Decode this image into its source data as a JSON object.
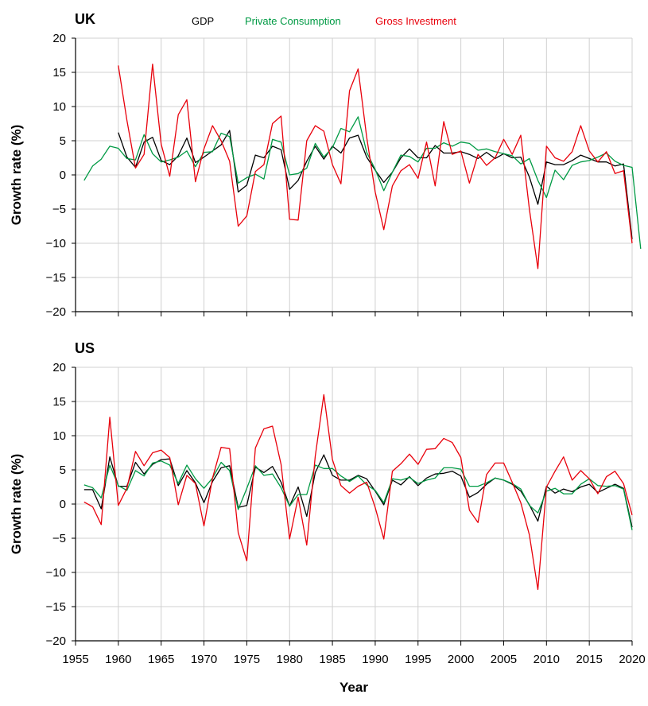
{
  "colors": {
    "gdp": "#000000",
    "consumption": "#009a44",
    "investment": "#e8000b",
    "grid": "#d0d0d0",
    "axis": "#000000"
  },
  "legend": [
    {
      "key": "gdp",
      "label": "GDP"
    },
    {
      "key": "consumption",
      "label": "Private Consumption"
    },
    {
      "key": "investment",
      "label": "Gross Investment"
    }
  ],
  "chart_data": [
    {
      "type": "line",
      "title": "UK",
      "xlabel": "Year",
      "ylabel": "Growth rate (%)",
      "xlim": [
        1955,
        2020
      ],
      "ylim": [
        -20,
        20
      ],
      "xticks": [
        "1955",
        "1960",
        "1965",
        "1970",
        "1975",
        "1980",
        "1985",
        "1990",
        "1995",
        "2000",
        "2005",
        "2010",
        "2015",
        "2020"
      ],
      "yticks": [
        "20",
        "15",
        "10",
        "5",
        "0",
        "−5",
        "−10",
        "−15",
        "−20"
      ],
      "grid": true,
      "series": [
        {
          "name": "GDP",
          "key": "gdp",
          "x0": 1960,
          "values": [
            6.2,
            2.6,
            1.1,
            4.8,
            5.5,
            2.1,
            1.5,
            2.8,
            5.4,
            1.8,
            2.6,
            3.5,
            4.4,
            6.5,
            -2.5,
            -1.5,
            2.9,
            2.5,
            4.2,
            3.7,
            -2.1,
            -0.8,
            2.0,
            4.2,
            2.3,
            4.2,
            3.2,
            5.4,
            5.8,
            2.6,
            0.7,
            -1.1,
            0.4,
            2.5,
            3.8,
            2.5,
            2.5,
            4.3,
            3.2,
            3.2,
            3.4,
            3.0,
            2.4,
            3.3,
            2.4,
            3.1,
            2.5,
            2.6,
            -0.3,
            -4.3,
            1.9,
            1.5,
            1.5,
            2.1,
            2.9,
            2.4,
            1.9,
            1.9,
            1.3,
            1.6,
            -9.4
          ]
        },
        {
          "name": "Private Consumption",
          "key": "consumption",
          "x0": 1956,
          "values": [
            -0.8,
            1.3,
            2.3,
            4.2,
            3.9,
            2.4,
            2.2,
            5.9,
            3.1,
            1.9,
            2.2,
            2.6,
            3.5,
            1.2,
            3.3,
            3.4,
            6.1,
            5.6,
            -1.2,
            -0.4,
            0.1,
            -0.6,
            5.2,
            4.8,
            0.0,
            0.2,
            1.0,
            4.6,
            2.6,
            4.0,
            6.8,
            6.3,
            8.5,
            3.3,
            0.8,
            -2.3,
            0.4,
            2.9,
            2.7,
            1.9,
            3.9,
            3.9,
            4.7,
            4.2,
            4.8,
            4.6,
            3.6,
            3.8,
            3.4,
            3.1,
            2.8,
            1.6,
            2.4,
            -0.8,
            -3.3,
            0.7,
            -0.7,
            1.4,
            1.9,
            2.1,
            2.6,
            3.2,
            2.0,
            1.4,
            1.1,
            -10.8
          ]
        },
        {
          "name": "Gross Investment",
          "key": "investment",
          "x0": 1960,
          "values": [
            16.0,
            8.0,
            1.0,
            3.0,
            16.2,
            4.5,
            -0.2,
            8.8,
            11.0,
            -1.0,
            3.8,
            7.2,
            5.0,
            2.0,
            -7.5,
            -6.0,
            0.5,
            1.5,
            7.5,
            8.6,
            -6.5,
            -6.6,
            5.0,
            7.2,
            6.4,
            1.5,
            -1.3,
            12.3,
            15.5,
            5.5,
            -2.5,
            -8.0,
            -1.6,
            0.6,
            1.5,
            -0.5,
            4.8,
            -1.6,
            7.8,
            3.0,
            3.5,
            -1.2,
            3.0,
            1.4,
            2.5,
            5.2,
            3.0,
            5.8,
            -5.0,
            -13.7,
            4.2,
            2.5,
            2.0,
            3.4,
            7.2,
            3.5,
            1.9,
            3.4,
            0.2,
            0.6,
            -10.0
          ]
        }
      ]
    },
    {
      "type": "line",
      "title": "US",
      "xlabel": "Year",
      "ylabel": "Growth rate (%)",
      "xlim": [
        1955,
        2020
      ],
      "ylim": [
        -20,
        20
      ],
      "xticks": [
        "1955",
        "1960",
        "1965",
        "1970",
        "1975",
        "1980",
        "1985",
        "1990",
        "1995",
        "2000",
        "2005",
        "2010",
        "2015",
        "2020"
      ],
      "yticks": [
        "20",
        "15",
        "10",
        "5",
        "0",
        "−5",
        "−10",
        "−15",
        "−20"
      ],
      "grid": true,
      "series": [
        {
          "name": "GDP",
          "key": "gdp",
          "x0": 1956,
          "values": [
            2.1,
            2.1,
            -0.7,
            6.9,
            2.6,
            2.6,
            6.1,
            4.4,
            5.8,
            6.5,
            6.6,
            2.7,
            4.9,
            3.1,
            0.2,
            3.3,
            5.3,
            5.6,
            -0.5,
            -0.2,
            5.4,
            4.6,
            5.5,
            3.2,
            -0.3,
            2.5,
            -1.8,
            4.6,
            7.2,
            4.2,
            3.5,
            3.5,
            4.2,
            3.7,
            1.9,
            -0.1,
            3.5,
            2.8,
            4.0,
            2.7,
            3.8,
            4.4,
            4.5,
            4.8,
            4.1,
            1.0,
            1.7,
            2.9,
            3.8,
            3.5,
            2.9,
            1.9,
            -0.1,
            -2.5,
            2.6,
            1.6,
            2.2,
            1.8,
            2.5,
            2.9,
            1.7,
            2.3,
            2.9,
            2.3,
            -3.4
          ]
        },
        {
          "name": "Private Consumption",
          "key": "consumption",
          "x0": 1956,
          "values": [
            2.8,
            2.4,
            0.9,
            5.7,
            2.7,
            2.0,
            4.9,
            4.1,
            6.0,
            6.3,
            5.7,
            3.0,
            5.7,
            3.7,
            2.3,
            3.8,
            6.1,
            4.9,
            -0.8,
            2.3,
            5.6,
            4.2,
            4.4,
            2.4,
            -0.3,
            1.4,
            1.4,
            5.7,
            5.2,
            5.2,
            4.1,
            3.3,
            4.1,
            2.8,
            2.0,
            0.2,
            3.7,
            3.5,
            3.9,
            3.0,
            3.5,
            3.8,
            5.3,
            5.3,
            5.1,
            2.6,
            2.6,
            3.1,
            3.8,
            3.5,
            3.0,
            2.2,
            -0.2,
            -1.3,
            1.9,
            2.3,
            1.5,
            1.5,
            2.9,
            3.7,
            2.7,
            2.6,
            2.7,
            2.2,
            -3.8
          ]
        },
        {
          "name": "Gross Investment",
          "key": "investment",
          "x0": 1956,
          "values": [
            0.3,
            -0.4,
            -3.0,
            12.7,
            -0.2,
            2.3,
            7.7,
            5.6,
            7.5,
            7.9,
            6.8,
            -0.1,
            4.2,
            3.0,
            -3.2,
            3.8,
            8.3,
            8.1,
            -4.2,
            -8.3,
            8.2,
            11.0,
            11.4,
            5.8,
            -5.1,
            1.0,
            -6.0,
            7.0,
            16.0,
            6.5,
            2.7,
            1.6,
            2.6,
            3.2,
            -0.5,
            -5.1,
            4.8,
            5.9,
            7.3,
            5.8,
            8.0,
            8.1,
            9.6,
            9.0,
            6.8,
            -0.9,
            -2.7,
            4.3,
            6.0,
            6.0,
            3.2,
            0.2,
            -4.5,
            -12.5,
            2.5,
            4.8,
            6.9,
            3.5,
            4.9,
            3.7,
            1.5,
            4.0,
            4.8,
            3.0,
            -1.6
          ]
        }
      ]
    }
  ]
}
